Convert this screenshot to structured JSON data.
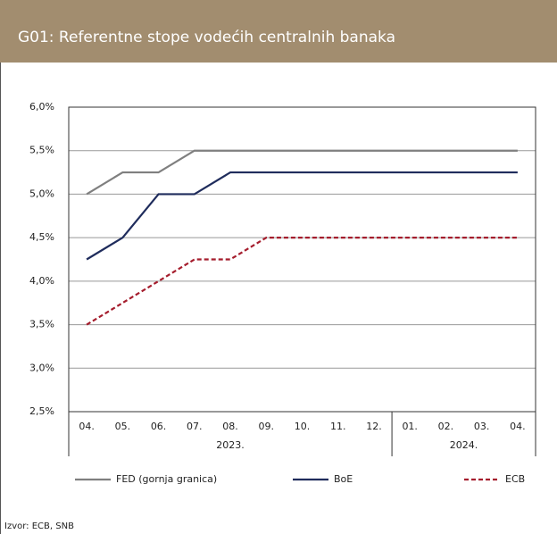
{
  "chart_data": {
    "type": "line",
    "title": "G01: Referentne stope vodećih centralnih banaka",
    "categories": [
      "04.",
      "05.",
      "06.",
      "07.",
      "08.",
      "09.",
      "10.",
      "11.",
      "12.",
      "01.",
      "02.",
      "03.",
      "04."
    ],
    "years": [
      {
        "label": "2023.",
        "count": 9
      },
      {
        "label": "2024.",
        "count": 4
      }
    ],
    "series": [
      {
        "name": "FED (gornja granica)",
        "color": "#7f7f7f",
        "dashed": false,
        "values": [
          5.0,
          5.25,
          5.25,
          5.5,
          5.5,
          5.5,
          5.5,
          5.5,
          5.5,
          5.5,
          5.5,
          5.5,
          5.5
        ]
      },
      {
        "name": "BoE",
        "color": "#1f2c5c",
        "dashed": false,
        "values": [
          4.25,
          4.5,
          5.0,
          5.0,
          5.25,
          5.25,
          5.25,
          5.25,
          5.25,
          5.25,
          5.25,
          5.25,
          5.25
        ]
      },
      {
        "name": "ECB",
        "color": "#a51d2d",
        "dashed": true,
        "values": [
          3.5,
          3.75,
          4.0,
          4.25,
          4.25,
          4.5,
          4.5,
          4.5,
          4.5,
          4.5,
          4.5,
          4.5,
          4.5
        ]
      }
    ],
    "ylim": [
      2.5,
      6.0
    ],
    "yticks": [
      {
        "value": 2.5,
        "label": "2,5%"
      },
      {
        "value": 3.0,
        "label": "3,0%"
      },
      {
        "value": 3.5,
        "label": "3,5%"
      },
      {
        "value": 4.0,
        "label": "4,0%"
      },
      {
        "value": 4.5,
        "label": "4,5%"
      },
      {
        "value": 5.0,
        "label": "5,0%"
      },
      {
        "value": 5.5,
        "label": "5,5%"
      },
      {
        "value": 6.0,
        "label": "6,0%"
      }
    ],
    "grid": true,
    "source": "Izvor: ECB, SNB"
  }
}
